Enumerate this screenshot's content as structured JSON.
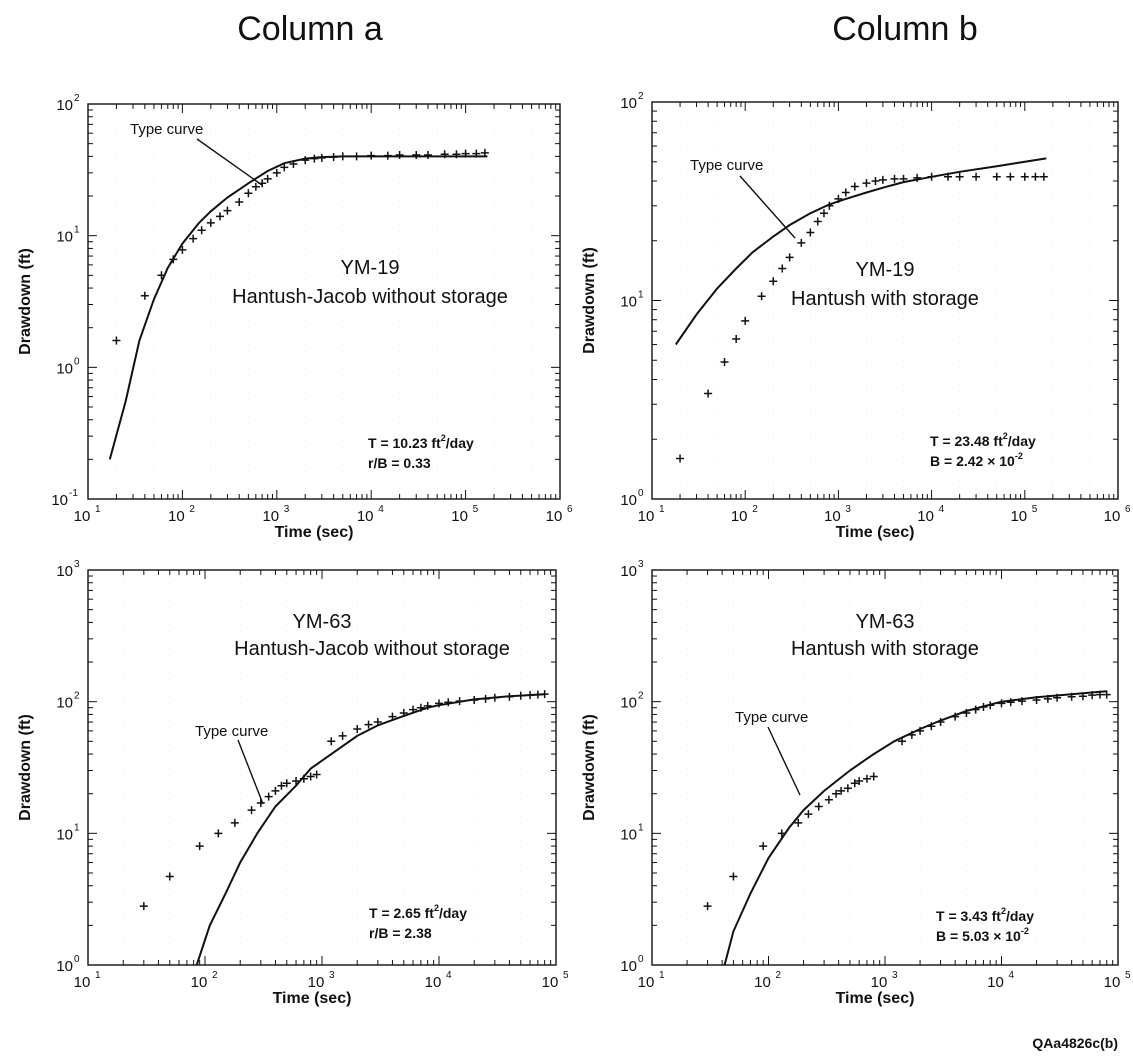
{
  "column_titles": [
    "Column a",
    "Column b"
  ],
  "figure_id": "QAa4826c(b)",
  "chart_data": [
    {
      "type": "scatter",
      "column": "Column a",
      "well": "YM-19",
      "method": "Hantush-Jacob without storage",
      "xlabel": "Time (sec)",
      "ylabel": "Drawdown (ft)",
      "xscale": "log",
      "yscale": "log",
      "xlim": [
        10,
        1000000
      ],
      "ylim": [
        0.1,
        100
      ],
      "x_ticks": [
        {
          "base": "10",
          "exp": "1"
        },
        {
          "base": "10",
          "exp": "2"
        },
        {
          "base": "10",
          "exp": "3"
        },
        {
          "base": "10",
          "exp": "4"
        },
        {
          "base": "10",
          "exp": "5"
        },
        {
          "base": "10",
          "exp": "6"
        }
      ],
      "y_ticks": [
        {
          "base": "10",
          "exp": "-1"
        },
        {
          "base": "10",
          "exp": "0"
        },
        {
          "base": "10",
          "exp": "1"
        },
        {
          "base": "10",
          "exp": "2"
        }
      ],
      "type_curve_label": "Type curve",
      "params": [
        {
          "pre": "T = 10.23 ft",
          "sup": "2",
          "post": "/day"
        },
        {
          "pre": "r/B = 0.33",
          "sup": "",
          "post": ""
        }
      ],
      "points": [
        [
          20,
          1.6
        ],
        [
          40,
          3.5
        ],
        [
          60,
          5
        ],
        [
          80,
          6.6
        ],
        [
          100,
          7.8
        ],
        [
          130,
          9.5
        ],
        [
          160,
          11
        ],
        [
          200,
          12.5
        ],
        [
          250,
          14
        ],
        [
          300,
          15.5
        ],
        [
          400,
          18
        ],
        [
          500,
          21
        ],
        [
          600,
          23.5
        ],
        [
          700,
          25
        ],
        [
          800,
          27
        ],
        [
          1000,
          30
        ],
        [
          1200,
          33
        ],
        [
          1500,
          35
        ],
        [
          2000,
          37.5
        ],
        [
          2500,
          38.5
        ],
        [
          3000,
          39
        ],
        [
          4000,
          39.5
        ],
        [
          5000,
          40
        ],
        [
          7000,
          40
        ],
        [
          10000,
          40.5
        ],
        [
          15000,
          40.5
        ],
        [
          20000,
          41
        ],
        [
          30000,
          41
        ],
        [
          40000,
          41
        ],
        [
          60000,
          41.5
        ],
        [
          80000,
          41.5
        ],
        [
          100000,
          42
        ],
        [
          130000,
          42
        ],
        [
          160000,
          42.5
        ]
      ],
      "type_curve": [
        [
          17,
          0.2
        ],
        [
          25,
          0.55
        ],
        [
          35,
          1.6
        ],
        [
          50,
          3.3
        ],
        [
          70,
          5.7
        ],
        [
          100,
          8.7
        ],
        [
          150,
          12.5
        ],
        [
          200,
          15.3
        ],
        [
          300,
          19.5
        ],
        [
          500,
          25
        ],
        [
          800,
          31
        ],
        [
          1200,
          35.5
        ],
        [
          2000,
          38.5
        ],
        [
          3000,
          39.5
        ],
        [
          5000,
          40
        ],
        [
          10000,
          40
        ],
        [
          30000,
          40
        ],
        [
          100000,
          40
        ],
        [
          170000,
          40
        ]
      ]
    },
    {
      "type": "scatter",
      "column": "Column b",
      "well": "YM-19",
      "method": "Hantush with storage",
      "xlabel": "Time (sec)",
      "ylabel": "Drawdown (ft)",
      "xscale": "log",
      "yscale": "log",
      "xlim": [
        10,
        1000000
      ],
      "ylim": [
        1,
        100
      ],
      "x_ticks": [
        {
          "base": "10",
          "exp": "1"
        },
        {
          "base": "10",
          "exp": "2"
        },
        {
          "base": "10",
          "exp": "3"
        },
        {
          "base": "10",
          "exp": "4"
        },
        {
          "base": "10",
          "exp": "5"
        },
        {
          "base": "10",
          "exp": "6"
        }
      ],
      "y_ticks": [
        {
          "base": "10",
          "exp": "0"
        },
        {
          "base": "10",
          "exp": "1"
        },
        {
          "base": "10",
          "exp": "2"
        }
      ],
      "type_curve_label": "Type curve",
      "params": [
        {
          "pre": "T = 23.48 ft",
          "sup": "2",
          "post": "/day"
        },
        {
          "pre": "B = 2.42 × 10",
          "sup": "-2",
          "post": ""
        }
      ],
      "points": [
        [
          20,
          1.6
        ],
        [
          40,
          3.4
        ],
        [
          60,
          4.9
        ],
        [
          80,
          6.4
        ],
        [
          100,
          7.9
        ],
        [
          150,
          10.5
        ],
        [
          200,
          12.5
        ],
        [
          250,
          14.5
        ],
        [
          300,
          16.5
        ],
        [
          400,
          19.5
        ],
        [
          500,
          22
        ],
        [
          600,
          25
        ],
        [
          700,
          27.5
        ],
        [
          800,
          30
        ],
        [
          1000,
          32.5
        ],
        [
          1200,
          35
        ],
        [
          1500,
          37.5
        ],
        [
          2000,
          39
        ],
        [
          2500,
          40
        ],
        [
          3000,
          40.5
        ],
        [
          4000,
          41
        ],
        [
          5000,
          41
        ],
        [
          7000,
          41.5
        ],
        [
          10000,
          42
        ],
        [
          15000,
          42
        ],
        [
          20000,
          42
        ],
        [
          30000,
          42
        ],
        [
          50000,
          42
        ],
        [
          70000,
          42
        ],
        [
          100000,
          42
        ],
        [
          130000,
          42
        ],
        [
          160000,
          42
        ]
      ],
      "type_curve": [
        [
          18,
          6
        ],
        [
          30,
          8.5
        ],
        [
          50,
          11.5
        ],
        [
          80,
          14.5
        ],
        [
          120,
          17.5
        ],
        [
          200,
          21
        ],
        [
          300,
          24
        ],
        [
          500,
          27.5
        ],
        [
          800,
          30.5
        ],
        [
          1200,
          32.5
        ],
        [
          2000,
          35
        ],
        [
          3000,
          37
        ],
        [
          5000,
          39.5
        ],
        [
          10000,
          42
        ],
        [
          20000,
          44.5
        ],
        [
          50000,
          47.5
        ],
        [
          100000,
          50
        ],
        [
          170000,
          52
        ]
      ]
    },
    {
      "type": "scatter",
      "column": "Column a",
      "well": "YM-63",
      "method": "Hantush-Jacob without storage",
      "xlabel": "Time (sec)",
      "ylabel": "Drawdown (ft)",
      "xscale": "log",
      "yscale": "log",
      "xlim": [
        10,
        100000
      ],
      "ylim": [
        1,
        1000
      ],
      "x_ticks": [
        {
          "base": "10",
          "exp": "1"
        },
        {
          "base": "10",
          "exp": "2"
        },
        {
          "base": "10",
          "exp": "3"
        },
        {
          "base": "10",
          "exp": "4"
        },
        {
          "base": "10",
          "exp": "5"
        }
      ],
      "y_ticks": [
        {
          "base": "10",
          "exp": "0"
        },
        {
          "base": "10",
          "exp": "1"
        },
        {
          "base": "10",
          "exp": "2"
        },
        {
          "base": "10",
          "exp": "3"
        }
      ],
      "type_curve_label": "Type curve",
      "params": [
        {
          "pre": "T = 2.65 ft",
          "sup": "2",
          "post": "/day"
        },
        {
          "pre": "r/B = 2.38",
          "sup": "",
          "post": ""
        }
      ],
      "points": [
        [
          30,
          2.8
        ],
        [
          50,
          4.7
        ],
        [
          90,
          8
        ],
        [
          130,
          10
        ],
        [
          180,
          12
        ],
        [
          250,
          15
        ],
        [
          300,
          17
        ],
        [
          350,
          19
        ],
        [
          400,
          21
        ],
        [
          450,
          23
        ],
        [
          500,
          24
        ],
        [
          600,
          25
        ],
        [
          700,
          26
        ],
        [
          800,
          27
        ],
        [
          900,
          28
        ],
        [
          1200,
          50
        ],
        [
          1500,
          55
        ],
        [
          2000,
          62
        ],
        [
          2500,
          67
        ],
        [
          3000,
          70
        ],
        [
          4000,
          77
        ],
        [
          5000,
          82
        ],
        [
          6000,
          87
        ],
        [
          7000,
          90
        ],
        [
          8000,
          93
        ],
        [
          10000,
          97
        ],
        [
          12000,
          99
        ],
        [
          15000,
          101
        ],
        [
          20000,
          103
        ],
        [
          25000,
          105
        ],
        [
          30000,
          107
        ],
        [
          40000,
          109
        ],
        [
          50000,
          111
        ],
        [
          60000,
          112
        ],
        [
          70000,
          113
        ],
        [
          80000,
          114
        ]
      ],
      "type_curve": [
        [
          85,
          1
        ],
        [
          110,
          2
        ],
        [
          150,
          3.5
        ],
        [
          200,
          6
        ],
        [
          280,
          10
        ],
        [
          400,
          16
        ],
        [
          600,
          23
        ],
        [
          800,
          31
        ],
        [
          1200,
          40
        ],
        [
          2000,
          55
        ],
        [
          3000,
          66
        ],
        [
          5000,
          78
        ],
        [
          8000,
          90
        ],
        [
          10000,
          94
        ],
        [
          20000,
          104
        ],
        [
          40000,
          110
        ],
        [
          80000,
          114
        ]
      ]
    },
    {
      "type": "scatter",
      "column": "Column b",
      "well": "YM-63",
      "method": "Hantush with storage",
      "xlabel": "Time (sec)",
      "ylabel": "Drawdown (ft)",
      "xscale": "log",
      "yscale": "log",
      "xlim": [
        10,
        100000
      ],
      "ylim": [
        1,
        1000
      ],
      "x_ticks": [
        {
          "base": "10",
          "exp": "1"
        },
        {
          "base": "10",
          "exp": "2"
        },
        {
          "base": "10",
          "exp": "3"
        },
        {
          "base": "10",
          "exp": "4"
        },
        {
          "base": "10",
          "exp": "5"
        }
      ],
      "y_ticks": [
        {
          "base": "10",
          "exp": "0"
        },
        {
          "base": "10",
          "exp": "1"
        },
        {
          "base": "10",
          "exp": "2"
        },
        {
          "base": "10",
          "exp": "3"
        }
      ],
      "type_curve_label": "Type curve",
      "params": [
        {
          "pre": "T = 3.43 ft",
          "sup": "2",
          "post": "/day"
        },
        {
          "pre": "B = 5.03 × 10",
          "sup": "-2",
          "post": ""
        }
      ],
      "points": [
        [
          30,
          2.8
        ],
        [
          50,
          4.7
        ],
        [
          90,
          8
        ],
        [
          130,
          10
        ],
        [
          180,
          12
        ],
        [
          220,
          14
        ],
        [
          270,
          16
        ],
        [
          330,
          18
        ],
        [
          380,
          20
        ],
        [
          420,
          21
        ],
        [
          480,
          22
        ],
        [
          550,
          24
        ],
        [
          600,
          25
        ],
        [
          700,
          26
        ],
        [
          800,
          27
        ],
        [
          1400,
          50
        ],
        [
          1700,
          56
        ],
        [
          2000,
          60
        ],
        [
          2500,
          65
        ],
        [
          3000,
          70
        ],
        [
          4000,
          77
        ],
        [
          5000,
          82
        ],
        [
          6000,
          87
        ],
        [
          7000,
          91
        ],
        [
          8000,
          94
        ],
        [
          10000,
          97
        ],
        [
          12000,
          99
        ],
        [
          15000,
          101
        ],
        [
          20000,
          103
        ],
        [
          25000,
          105
        ],
        [
          30000,
          107
        ],
        [
          40000,
          109
        ],
        [
          50000,
          110
        ],
        [
          60000,
          112
        ],
        [
          70000,
          113
        ],
        [
          80000,
          113
        ]
      ],
      "type_curve": [
        [
          42,
          1
        ],
        [
          50,
          1.8
        ],
        [
          70,
          3.5
        ],
        [
          100,
          6.5
        ],
        [
          150,
          11
        ],
        [
          200,
          15
        ],
        [
          300,
          21
        ],
        [
          500,
          30
        ],
        [
          800,
          40
        ],
        [
          1200,
          50
        ],
        [
          2000,
          62
        ],
        [
          3000,
          72
        ],
        [
          5000,
          85
        ],
        [
          8000,
          95
        ],
        [
          10000,
          100
        ],
        [
          20000,
          108
        ],
        [
          50000,
          116
        ],
        [
          80000,
          120
        ]
      ]
    }
  ]
}
